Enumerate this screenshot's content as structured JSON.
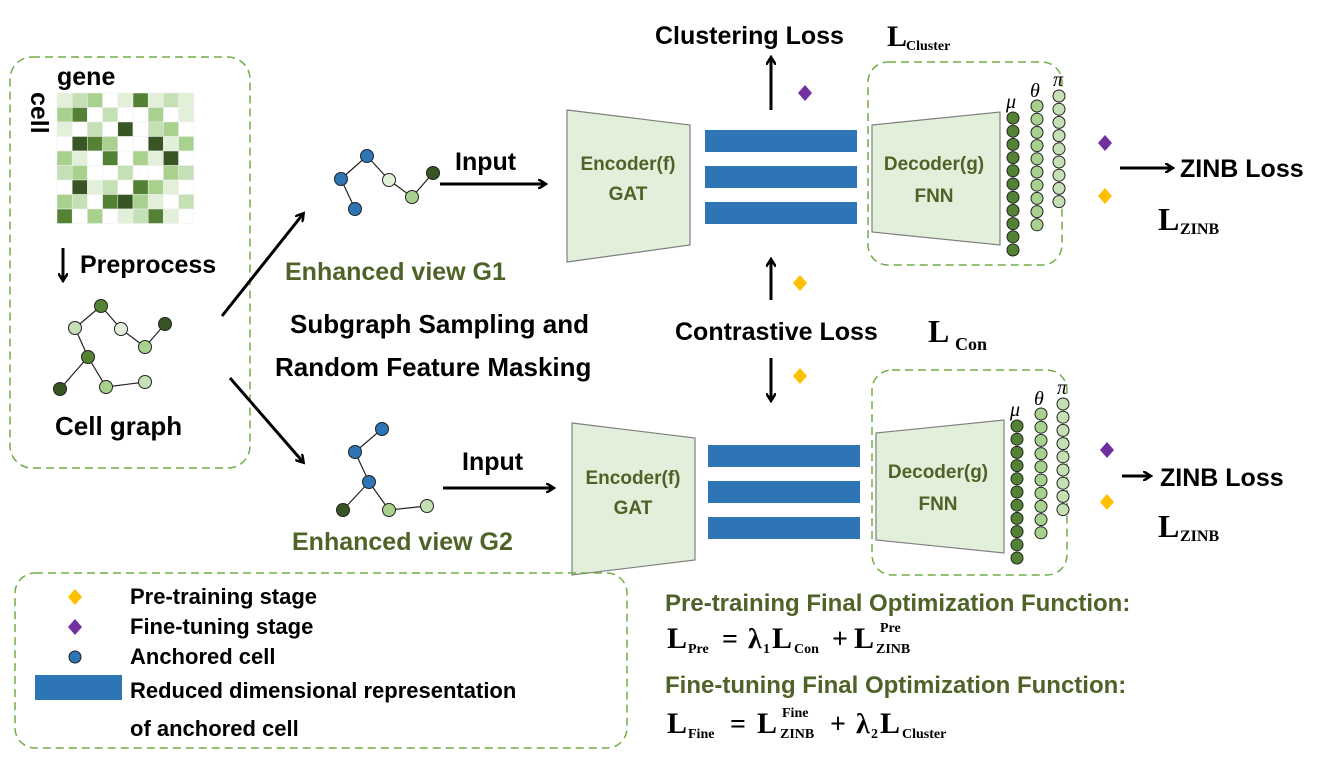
{
  "colors": {
    "accent_green": "#70ad47",
    "text_green": "#4f6228",
    "blue": "#2e75b6",
    "pretrain_diamond": "#ffc000",
    "finetune_diamond": "#7030a0",
    "module_fill": "#e2efda"
  },
  "input_panel": {
    "gene_label": "gene",
    "cell_label": "cell",
    "preprocess_label": "Preprocess",
    "cell_graph_label": "Cell graph"
  },
  "augmentation": {
    "line1": "Subgraph Sampling and",
    "line2": "Random Feature Masking"
  },
  "view1": {
    "input_label": "Input",
    "view_label": "Enhanced view G1",
    "encoder_line1": "Encoder(f)",
    "encoder_line2": "GAT",
    "decoder_line1": "Decoder(g)",
    "decoder_line2": "FNN",
    "mu": "μ",
    "theta": "θ",
    "pi": "π",
    "loss_label": "ZINB Loss",
    "loss_symbol": "L",
    "loss_sub": "ZINB"
  },
  "view2": {
    "input_label": "Input",
    "view_label": "Enhanced view G2",
    "encoder_line1": "Encoder(f)",
    "encoder_line2": "GAT",
    "decoder_line1": "Decoder(g)",
    "decoder_line2": "FNN",
    "mu": "μ",
    "theta": "θ",
    "pi": "π",
    "loss_label": "ZINB Loss",
    "loss_symbol": "L",
    "loss_sub": "ZINB"
  },
  "clustering_loss": {
    "label": "Clustering Loss",
    "symbol": "L",
    "sub": "Cluster"
  },
  "contrastive_loss": {
    "label": "Contrastive Loss",
    "symbol": "L",
    "sub": "Con"
  },
  "legend": {
    "pretrain": "Pre-training stage",
    "finetune": "Fine-tuning stage",
    "anchored": "Anchored cell",
    "reduced_line1": "Reduced dimensional representation",
    "reduced_line2": "of anchored cell"
  },
  "formulas": {
    "pre_title": "Pre-training Final Optimization Function:",
    "pre": {
      "L": "L",
      "lhs_sub": "Pre",
      "eq": "=",
      "lambda": "λ",
      "lambda_sub": "1",
      "L2": "L",
      "con_sub": "Con",
      "plus": "+",
      "L3": "L",
      "zinb_sup": "Pre",
      "zinb_sub": "ZINB"
    },
    "fine_title": "Fine-tuning Final Optimization Function:",
    "fine": {
      "L": "L",
      "lhs_sub": "Fine",
      "eq": "=",
      "L2": "L",
      "zinb_sup": "Fine",
      "zinb_sub": "ZINB",
      "plus": "+",
      "lambda": "λ",
      "lambda_sub": "2",
      "L3": "L",
      "cluster_sub": "Cluster"
    }
  }
}
